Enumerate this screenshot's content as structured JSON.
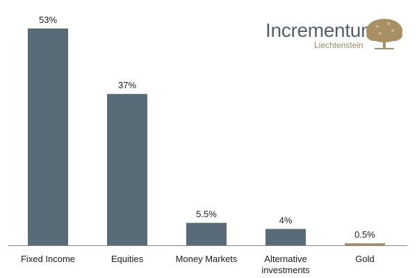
{
  "brand": {
    "name": "Incrementum",
    "subtitle": "Liechtenstein",
    "logo_color": "#50606e",
    "tree_color": "#a89063"
  },
  "chart_data": {
    "type": "bar",
    "categories": [
      "Fixed Income",
      "Equities",
      "Money Markets",
      "Alternative investments",
      "Gold"
    ],
    "category_lines": [
      [
        "Fixed Income"
      ],
      [
        "Equities"
      ],
      [
        "Money Markets"
      ],
      [
        "Alternative",
        "investments"
      ],
      [
        "Gold"
      ]
    ],
    "values": [
      53,
      37,
      5.5,
      4,
      0.5
    ],
    "value_labels": [
      "53%",
      "37%",
      "5.5%",
      "4%",
      "0.5%"
    ],
    "bar_colors": [
      "#5a6b78",
      "#5a6b78",
      "#5a6b78",
      "#5a6b78",
      "#a89063"
    ],
    "ylim": [
      0,
      53
    ],
    "grid": false,
    "legend": "none"
  }
}
